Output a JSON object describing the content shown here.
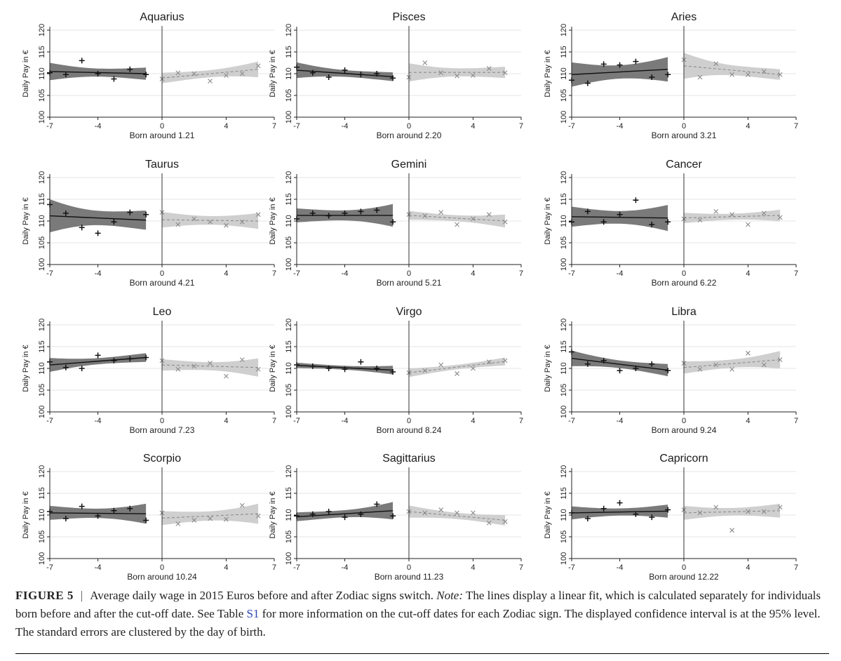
{
  "chart_data": [
    {
      "type": "scatter",
      "title": "Aquarius",
      "xlabel": "Born around 1.21",
      "ylabel": "Daily Pay in €",
      "xlim": [
        -7,
        7
      ],
      "ylim": [
        100,
        120
      ],
      "xticks": [
        -7,
        -4,
        0,
        4,
        7
      ],
      "yticks": [
        100,
        105,
        110,
        115,
        120
      ],
      "series": [
        {
          "x": [
            -7,
            -6,
            -5,
            -4,
            -3,
            -2,
            -1
          ],
          "y": [
            110.2,
            109.8,
            113.0,
            110.0,
            108.8,
            111.0,
            109.8
          ],
          "fit": [
            110.5,
            110.0
          ],
          "ci": [
            2.0,
            1.4
          ]
        },
        {
          "x": [
            0,
            1,
            2,
            3,
            4,
            5,
            6
          ],
          "y": [
            108.8,
            110.2,
            110.0,
            108.3,
            109.6,
            110.0,
            111.8
          ],
          "fit": [
            109.0,
            111.0
          ],
          "ci": [
            1.2,
            1.8
          ]
        }
      ]
    },
    {
      "type": "scatter",
      "title": "Pisces",
      "xlabel": "Born around 2.20",
      "ylabel": "Daily Pay in €",
      "xlim": [
        -7,
        7
      ],
      "ylim": [
        100,
        120
      ],
      "xticks": [
        -7,
        -4,
        0,
        4,
        7
      ],
      "yticks": [
        100,
        105,
        110,
        115,
        120
      ],
      "series": [
        {
          "x": [
            -7,
            -6,
            -5,
            -4,
            -3,
            -2,
            -1
          ],
          "y": [
            111.5,
            110.2,
            109.2,
            110.8,
            109.8,
            110.0,
            109.0
          ],
          "fit": [
            110.8,
            109.3
          ],
          "ci": [
            1.8,
            1.0
          ]
        },
        {
          "x": [
            0,
            1,
            2,
            3,
            4,
            5,
            6
          ],
          "y": [
            109.2,
            112.5,
            110.2,
            109.5,
            109.6,
            111.2,
            110.2
          ],
          "fit": [
            110.3,
            110.3
          ],
          "ci": [
            2.1,
            1.3
          ]
        }
      ]
    },
    {
      "type": "scatter",
      "title": "Aries",
      "xlabel": "Born around 3.21",
      "ylabel": "Daily Pay in €",
      "xlim": [
        -7,
        7
      ],
      "ylim": [
        100,
        120
      ],
      "xticks": [
        -7,
        -4,
        0,
        4,
        7
      ],
      "yticks": [
        100,
        105,
        110,
        115,
        120
      ],
      "series": [
        {
          "x": [
            -7,
            -6,
            -5,
            -4,
            -3,
            -2,
            -1
          ],
          "y": [
            108.5,
            107.8,
            112.2,
            112.0,
            112.8,
            109.2,
            109.8
          ],
          "fit": [
            109.8,
            111.0
          ],
          "ci": [
            2.8,
            2.8
          ]
        },
        {
          "x": [
            0,
            1,
            2,
            3,
            4,
            5,
            6
          ],
          "y": [
            113.2,
            109.2,
            112.3,
            109.8,
            109.8,
            110.5,
            109.8
          ],
          "fit": [
            111.8,
            109.8
          ],
          "ci": [
            3.0,
            1.2
          ]
        }
      ]
    },
    {
      "type": "scatter",
      "title": "Taurus",
      "xlabel": "Born around 4.21",
      "ylabel": "Daily Pay in €",
      "xlim": [
        -7,
        7
      ],
      "ylim": [
        100,
        120
      ],
      "xticks": [
        -7,
        -4,
        0,
        4,
        7
      ],
      "yticks": [
        100,
        105,
        110,
        115,
        120
      ],
      "series": [
        {
          "x": [
            -7,
            -6,
            -5,
            -4,
            -3,
            -2,
            -1
          ],
          "y": [
            113.8,
            111.8,
            108.5,
            107.2,
            109.8,
            112.0,
            111.5
          ],
          "fit": [
            111.2,
            110.2
          ],
          "ci": [
            3.8,
            2.2
          ]
        },
        {
          "x": [
            0,
            1,
            2,
            3,
            4,
            5,
            6
          ],
          "y": [
            112.0,
            109.2,
            110.5,
            109.8,
            109.0,
            109.8,
            111.5
          ],
          "fit": [
            110.3,
            110.0
          ],
          "ci": [
            1.8,
            1.8
          ]
        }
      ]
    },
    {
      "type": "scatter",
      "title": "Gemini",
      "xlabel": "Born around 5.21",
      "ylabel": "Daily Pay in €",
      "xlim": [
        -7,
        7
      ],
      "ylim": [
        100,
        120
      ],
      "xticks": [
        -7,
        -4,
        0,
        4,
        7
      ],
      "yticks": [
        100,
        105,
        110,
        115,
        120
      ],
      "series": [
        {
          "x": [
            -7,
            -6,
            -5,
            -4,
            -3,
            -2,
            -1
          ],
          "y": [
            110.5,
            111.8,
            111.2,
            111.8,
            112.2,
            112.5,
            109.8
          ],
          "fit": [
            111.3,
            111.3
          ],
          "ci": [
            1.6,
            2.6
          ]
        },
        {
          "x": [
            0,
            1,
            2,
            3,
            4,
            5,
            6
          ],
          "y": [
            111.5,
            111.2,
            112.0,
            109.2,
            110.5,
            111.5,
            109.8
          ],
          "fit": [
            111.3,
            110.0
          ],
          "ci": [
            1.0,
            1.5
          ]
        }
      ]
    },
    {
      "type": "scatter",
      "title": "Cancer",
      "xlabel": "Born around 6.22",
      "ylabel": "Daily Pay in €",
      "xlim": [
        -7,
        7
      ],
      "ylim": [
        100,
        120
      ],
      "xticks": [
        -7,
        -4,
        0,
        4,
        7
      ],
      "yticks": [
        100,
        105,
        110,
        115,
        120
      ],
      "series": [
        {
          "x": [
            -7,
            -6,
            -5,
            -4,
            -3,
            -2,
            -1
          ],
          "y": [
            109.8,
            112.2,
            109.8,
            111.5,
            114.8,
            109.2,
            109.8
          ],
          "fit": [
            111.0,
            110.7
          ],
          "ci": [
            2.3,
            3.0
          ]
        },
        {
          "x": [
            0,
            1,
            2,
            3,
            4,
            5,
            6
          ],
          "y": [
            110.5,
            110.2,
            112.2,
            111.5,
            109.2,
            111.8,
            110.8
          ],
          "fit": [
            110.7,
            111.3
          ],
          "ci": [
            1.2,
            1.3
          ]
        }
      ]
    },
    {
      "type": "scatter",
      "title": "Leo",
      "xlabel": "Born around 7.23",
      "ylabel": "Daily Pay in €",
      "xlim": [
        -7,
        7
      ],
      "ylim": [
        100,
        120
      ],
      "xticks": [
        -7,
        -4,
        0,
        4,
        7
      ],
      "yticks": [
        100,
        105,
        110,
        115,
        120
      ],
      "series": [
        {
          "x": [
            -7,
            -6,
            -5,
            -4,
            -3,
            -2,
            -1
          ],
          "y": [
            111.5,
            110.2,
            110.0,
            113.0,
            111.8,
            112.2,
            112.5
          ],
          "fit": [
            110.8,
            112.5
          ],
          "ci": [
            1.6,
            1.0
          ]
        },
        {
          "x": [
            0,
            1,
            2,
            3,
            4,
            5,
            6
          ],
          "y": [
            111.8,
            109.8,
            110.5,
            111.2,
            108.2,
            112.0,
            109.8
          ],
          "fit": [
            110.8,
            110.2
          ],
          "ci": [
            1.3,
            2.1
          ]
        }
      ]
    },
    {
      "type": "scatter",
      "title": "Virgo",
      "xlabel": "Born around 8.24",
      "ylabel": "Daily Pay in €",
      "xlim": [
        -7,
        7
      ],
      "ylim": [
        100,
        120
      ],
      "xticks": [
        -7,
        -4,
        0,
        4,
        7
      ],
      "yticks": [
        100,
        105,
        110,
        115,
        120
      ],
      "series": [
        {
          "x": [
            -7,
            -6,
            -5,
            -4,
            -3,
            -2,
            -1
          ],
          "y": [
            110.8,
            110.5,
            110.0,
            109.8,
            111.5,
            110.0,
            109.2
          ],
          "fit": [
            110.7,
            109.6
          ],
          "ci": [
            0.6,
            1.0
          ]
        },
        {
          "x": [
            0,
            1,
            2,
            3,
            4,
            5,
            6
          ],
          "y": [
            109.0,
            109.5,
            110.8,
            108.8,
            110.0,
            111.5,
            111.8
          ],
          "fit": [
            109.0,
            111.6
          ],
          "ci": [
            1.0,
            0.9
          ]
        }
      ]
    },
    {
      "type": "scatter",
      "title": "Libra",
      "xlabel": "Born around 9.24",
      "ylabel": "Daily Pay in €",
      "xlim": [
        -7,
        7
      ],
      "ylim": [
        100,
        120
      ],
      "xticks": [
        -7,
        -4,
        0,
        4,
        7
      ],
      "yticks": [
        100,
        105,
        110,
        115,
        120
      ],
      "series": [
        {
          "x": [
            -7,
            -6,
            -5,
            -4,
            -3,
            -2,
            -1
          ],
          "y": [
            113.8,
            111.0,
            111.8,
            109.5,
            110.0,
            111.0,
            109.5
          ],
          "fit": [
            112.3,
            109.6
          ],
          "ci": [
            1.8,
            1.4
          ]
        },
        {
          "x": [
            0,
            1,
            2,
            3,
            4,
            5,
            6
          ],
          "y": [
            111.2,
            109.8,
            110.8,
            109.8,
            113.5,
            110.8,
            112.0
          ],
          "fit": [
            110.2,
            112.0
          ],
          "ci": [
            1.4,
            2.0
          ]
        }
      ]
    },
    {
      "type": "scatter",
      "title": "Scorpio",
      "xlabel": "Born around 10.24",
      "ylabel": "Daily Pay in €",
      "xlim": [
        -7,
        7
      ],
      "ylim": [
        100,
        120
      ],
      "xticks": [
        -7,
        -4,
        0,
        4,
        7
      ],
      "yticks": [
        100,
        105,
        110,
        115,
        120
      ],
      "series": [
        {
          "x": [
            -7,
            -6,
            -5,
            -4,
            -3,
            -2,
            -1
          ],
          "y": [
            110.8,
            109.2,
            112.0,
            109.8,
            111.0,
            111.5,
            108.8
          ],
          "fit": [
            110.5,
            110.3
          ],
          "ci": [
            1.6,
            2.3
          ]
        },
        {
          "x": [
            0,
            1,
            2,
            3,
            4,
            5,
            6
          ],
          "y": [
            110.5,
            108.0,
            108.8,
            109.2,
            109.0,
            112.2,
            109.8
          ],
          "fit": [
            109.3,
            110.3
          ],
          "ci": [
            1.6,
            2.3
          ]
        }
      ]
    },
    {
      "type": "scatter",
      "title": "Sagittarius",
      "xlabel": "Born around 11.23",
      "ylabel": "Daily Pay in €",
      "xlim": [
        -7,
        7
      ],
      "ylim": [
        100,
        120
      ],
      "xticks": [
        -7,
        -4,
        0,
        4,
        7
      ],
      "yticks": [
        100,
        105,
        110,
        115,
        120
      ],
      "series": [
        {
          "x": [
            -7,
            -6,
            -5,
            -4,
            -3,
            -2,
            -1
          ],
          "y": [
            109.8,
            110.2,
            110.8,
            109.5,
            110.2,
            112.5,
            109.8
          ],
          "fit": [
            109.6,
            111.0
          ],
          "ci": [
            1.0,
            2.0
          ]
        },
        {
          "x": [
            0,
            1,
            2,
            3,
            4,
            5,
            6
          ],
          "y": [
            110.8,
            110.5,
            111.2,
            110.5,
            110.5,
            108.2,
            108.5
          ],
          "fit": [
            110.8,
            108.8
          ],
          "ci": [
            1.4,
            1.2
          ]
        }
      ]
    },
    {
      "type": "scatter",
      "title": "Capricorn",
      "xlabel": "Born around 12.22",
      "ylabel": "Daily Pay in €",
      "xlim": [
        -7,
        7
      ],
      "ylim": [
        100,
        120
      ],
      "xticks": [
        -7,
        -4,
        0,
        4,
        7
      ],
      "yticks": [
        100,
        105,
        110,
        115,
        120
      ],
      "series": [
        {
          "x": [
            -7,
            -6,
            -5,
            -4,
            -3,
            -2,
            -1
          ],
          "y": [
            110.5,
            109.2,
            111.5,
            112.8,
            110.2,
            109.5,
            111.2
          ],
          "fit": [
            110.5,
            110.9
          ],
          "ci": [
            1.5,
            1.5
          ]
        },
        {
          "x": [
            0,
            1,
            2,
            3,
            4,
            5,
            6
          ],
          "y": [
            111.2,
            110.5,
            111.8,
            106.5,
            110.8,
            110.8,
            111.8
          ],
          "fit": [
            110.5,
            111.0
          ],
          "ci": [
            1.6,
            1.6
          ]
        }
      ]
    }
  ],
  "colors": {
    "left_band": "#7a7a7a",
    "right_band": "#cfcfcf",
    "left_line": "#111111",
    "right_line": "#8c8c8c",
    "grid": "#e4e4e4",
    "cutoff": "#333333"
  },
  "caption": {
    "label": "FIGURE 5",
    "separator": "|",
    "text1": "Average daily wage in 2015 Euros before and after Zodiac signs switch.",
    "note_label": "Note:",
    "text2": "The lines display a linear fit, which is calculated separately for individuals born before and after the cut-off date. See Table",
    "table_ref": "S1",
    "text3": "for more information on the cut-off dates for each Zodiac sign. The displayed confidence interval is at the 95% level. The standard errors are clustered by the day of birth."
  }
}
